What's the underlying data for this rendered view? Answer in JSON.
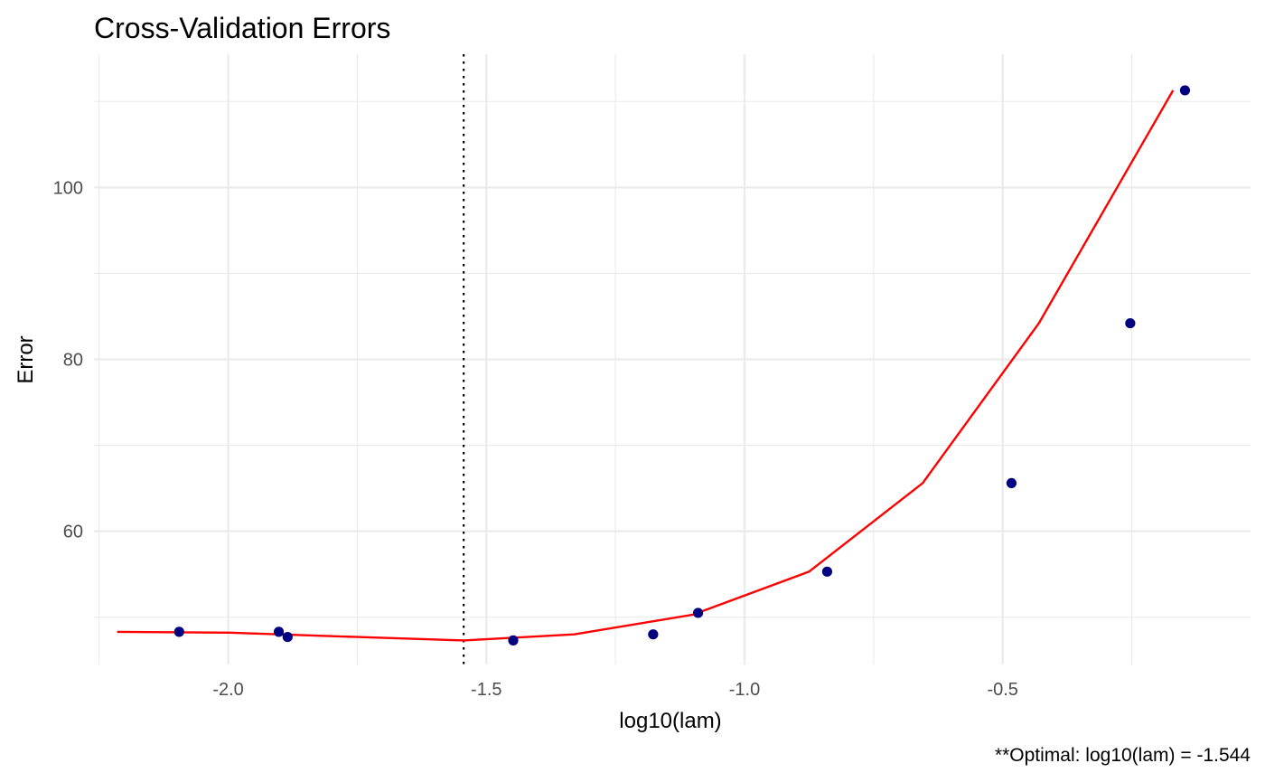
{
  "chart_data": {
    "type": "scatter",
    "title": "Cross-Validation Errors",
    "xlabel": "log10(lam)",
    "ylabel": "Error",
    "caption": "**Optimal: log10(lam) = -1.544",
    "xlim": [
      -2.26,
      -0.02
    ],
    "ylim": [
      44.5,
      115.5
    ],
    "x_ticks": [
      -2.0,
      -1.5,
      -1.0,
      -0.5
    ],
    "x_tick_labels": [
      "-2.0",
      "-1.5",
      "-1.0",
      "-0.5"
    ],
    "x_minor_ticks": [
      -2.25,
      -1.75,
      -1.25,
      -0.75,
      -0.25
    ],
    "y_ticks": [
      60,
      80,
      100
    ],
    "y_tick_labels": [
      "60",
      "80",
      "100"
    ],
    "y_minor_ticks": [
      50,
      70,
      90,
      110
    ],
    "grid": true,
    "series": [
      {
        "type": "scatter",
        "color": "#000080",
        "x": [
          -2.095,
          -1.902,
          -1.885,
          -1.448,
          -1.177,
          -1.09,
          -0.84,
          -0.483,
          -0.253,
          -0.147
        ],
        "y": [
          48.3,
          48.3,
          47.7,
          47.3,
          48.0,
          50.5,
          55.3,
          65.6,
          84.2,
          111.3
        ]
      },
      {
        "type": "line",
        "color": "#ff0000",
        "x": [
          -2.215,
          -2.0,
          -1.75,
          -1.544,
          -1.33,
          -1.1,
          -0.875,
          -0.655,
          -0.43,
          -0.17
        ],
        "y": [
          48.3,
          48.2,
          47.7,
          47.3,
          48.0,
          50.3,
          55.3,
          65.6,
          84.2,
          111.3
        ]
      }
    ],
    "vline": {
      "x": -1.544,
      "color": "#000000",
      "style": "dotted"
    }
  }
}
